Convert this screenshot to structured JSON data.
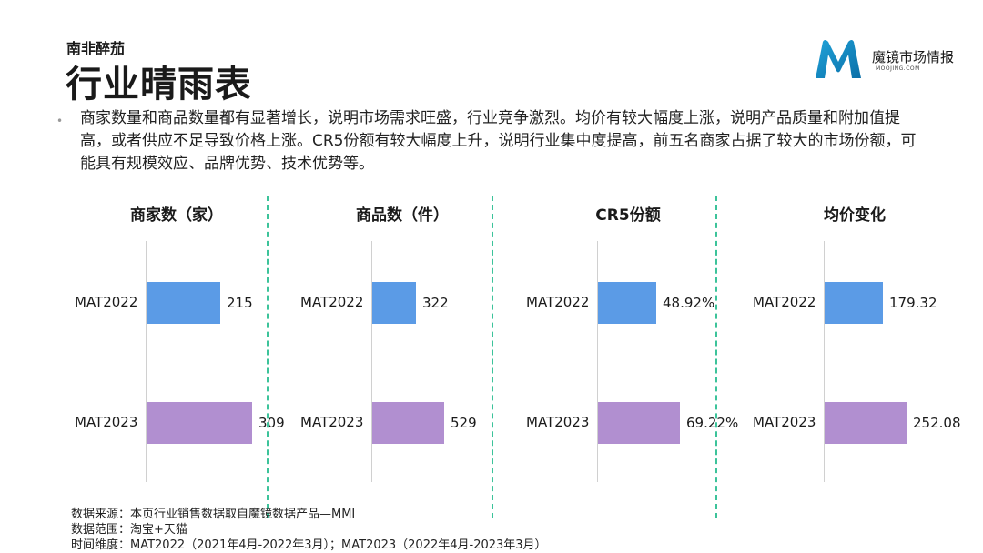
{
  "header": {
    "subtitle": "南非醉茄",
    "title": "行业晴雨表"
  },
  "logo": {
    "name": "魔镜市场情报",
    "url": "MOOJING.COM"
  },
  "description": "商家数量和商品数量都有显著增长，说明市场需求旺盛，行业竞争激烈。均价有较大幅度上涨，说明产品质量和附加值提高，或者供应不足导致价格上涨。CR5份额有较大幅度上升，说明行业集中度提高，前五名商家占据了较大的市场份额，可能具有规模效应、品牌优势、技术优势等。",
  "colors": {
    "mat2022": "#5b9be6",
    "mat2023": "#b18fd0",
    "divider": "#3cc39a"
  },
  "chart_data": [
    {
      "type": "bar",
      "title": "商家数（家）",
      "categories": [
        "MAT2022",
        "MAT2023"
      ],
      "values": [
        215,
        309
      ],
      "labels": [
        "215",
        "309"
      ],
      "xlim": [
        0,
        400
      ]
    },
    {
      "type": "bar",
      "title": "商品数（件）",
      "categories": [
        "MAT2022",
        "MAT2023"
      ],
      "values": [
        322,
        529
      ],
      "labels": [
        "322",
        "529"
      ],
      "xlim": [
        0,
        1000
      ]
    },
    {
      "type": "bar",
      "title": "CR5份额",
      "categories": [
        "MAT2022",
        "MAT2023"
      ],
      "values": [
        48.92,
        69.22
      ],
      "labels": [
        "48.92%",
        "69.22%"
      ],
      "xlim": [
        0,
        115
      ]
    },
    {
      "type": "bar",
      "title": "均价变化",
      "categories": [
        "MAT2022",
        "MAT2023"
      ],
      "values": [
        179.32,
        252.08
      ],
      "labels": [
        "179.32",
        "252.08"
      ],
      "xlim": [
        0,
        420
      ]
    }
  ],
  "footer": {
    "source": "数据来源：本页行业销售数据取自魔镜数据产品—MMI",
    "scope": "数据范围：淘宝+天猫",
    "time": "时间维度：MAT2022（2021年4月-2022年3月）；MAT2023（2022年4月-2023年3月）"
  }
}
